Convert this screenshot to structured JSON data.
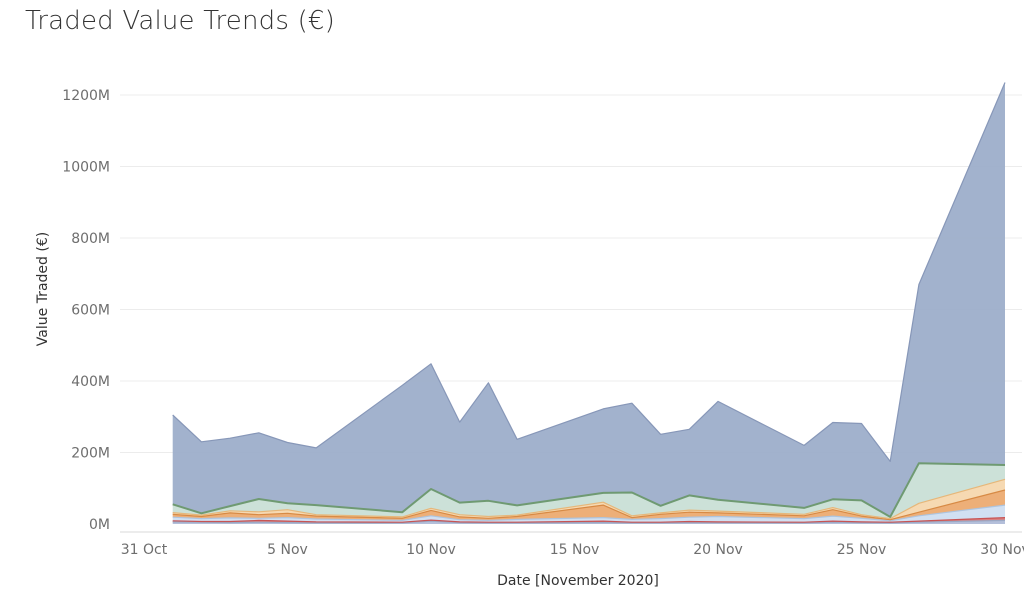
{
  "chart_data": {
    "type": "area",
    "title": "Traded Value Trends (€)",
    "xlabel": "Date [November 2020]",
    "ylabel": "Value Traded (€)",
    "ylim": [
      0,
      1270
    ],
    "y_unit": "M",
    "y_ticks": [
      {
        "value": 0,
        "label": "0M"
      },
      {
        "value": 200,
        "label": "200M"
      },
      {
        "value": 400,
        "label": "400M"
      },
      {
        "value": 600,
        "label": "600M"
      },
      {
        "value": 800,
        "label": "800M"
      },
      {
        "value": 1000,
        "label": "1000M"
      },
      {
        "value": 1200,
        "label": "1200M"
      }
    ],
    "x_ticks": [
      {
        "date": "2020-10-31",
        "label": "31 Oct"
      },
      {
        "date": "2020-11-05",
        "label": "5 Nov"
      },
      {
        "date": "2020-11-10",
        "label": "10 Nov"
      },
      {
        "date": "2020-11-15",
        "label": "15 Nov"
      },
      {
        "date": "2020-11-20",
        "label": "20 Nov"
      },
      {
        "date": "2020-11-25",
        "label": "25 Nov"
      },
      {
        "date": "2020-11-30",
        "label": "30 Nov"
      }
    ],
    "grid": true,
    "stacked": true,
    "series": [
      {
        "color": "#a7b4d4",
        "points": [
          [
            "2020-11-01",
            6
          ],
          [
            "2020-11-02",
            5
          ],
          [
            "2020-11-03",
            4
          ],
          [
            "2020-11-04",
            5
          ],
          [
            "2020-11-05",
            4
          ],
          [
            "2020-11-06",
            3
          ],
          [
            "2020-11-09",
            3
          ],
          [
            "2020-11-10",
            8
          ],
          [
            "2020-11-11",
            4
          ],
          [
            "2020-11-12",
            3
          ],
          [
            "2020-11-13",
            3
          ],
          [
            "2020-11-16",
            4
          ],
          [
            "2020-11-17",
            3
          ],
          [
            "2020-11-18",
            3
          ],
          [
            "2020-11-19",
            4
          ],
          [
            "2020-11-20",
            4
          ],
          [
            "2020-11-23",
            3
          ],
          [
            "2020-11-24",
            5
          ],
          [
            "2020-11-25",
            4
          ],
          [
            "2020-11-26",
            3
          ],
          [
            "2020-11-27",
            5
          ],
          [
            "2020-11-30",
            10
          ]
        ]
      },
      {
        "color": "#d36a6a",
        "points": [
          [
            "2020-11-01",
            3
          ],
          [
            "2020-11-02",
            2
          ],
          [
            "2020-11-03",
            3
          ],
          [
            "2020-11-04",
            5
          ],
          [
            "2020-11-05",
            4
          ],
          [
            "2020-11-06",
            3
          ],
          [
            "2020-11-09",
            2
          ],
          [
            "2020-11-10",
            3
          ],
          [
            "2020-11-11",
            2
          ],
          [
            "2020-11-12",
            2
          ],
          [
            "2020-11-13",
            2
          ],
          [
            "2020-11-16",
            4
          ],
          [
            "2020-11-17",
            2
          ],
          [
            "2020-11-18",
            2
          ],
          [
            "2020-11-19",
            3
          ],
          [
            "2020-11-20",
            2
          ],
          [
            "2020-11-23",
            2
          ],
          [
            "2020-11-24",
            3
          ],
          [
            "2020-11-25",
            2
          ],
          [
            "2020-11-26",
            2
          ],
          [
            "2020-11-27",
            3
          ],
          [
            "2020-11-30",
            8
          ]
        ]
      },
      {
        "color": "#c9daf0",
        "points": [
          [
            "2020-11-01",
            10
          ],
          [
            "2020-11-02",
            8
          ],
          [
            "2020-11-03",
            10
          ],
          [
            "2020-11-04",
            6
          ],
          [
            "2020-11-05",
            10
          ],
          [
            "2020-11-06",
            8
          ],
          [
            "2020-11-09",
            5
          ],
          [
            "2020-11-10",
            12
          ],
          [
            "2020-11-11",
            6
          ],
          [
            "2020-11-12",
            5
          ],
          [
            "2020-11-13",
            8
          ],
          [
            "2020-11-16",
            10
          ],
          [
            "2020-11-17",
            8
          ],
          [
            "2020-11-18",
            10
          ],
          [
            "2020-11-19",
            12
          ],
          [
            "2020-11-20",
            15
          ],
          [
            "2020-11-23",
            10
          ],
          [
            "2020-11-24",
            14
          ],
          [
            "2020-11-25",
            10
          ],
          [
            "2020-11-26",
            4
          ],
          [
            "2020-11-27",
            15
          ],
          [
            "2020-11-30",
            35
          ]
        ]
      },
      {
        "color": "#eaa160",
        "points": [
          [
            "2020-11-01",
            8
          ],
          [
            "2020-11-02",
            6
          ],
          [
            "2020-11-03",
            14
          ],
          [
            "2020-11-04",
            10
          ],
          [
            "2020-11-05",
            12
          ],
          [
            "2020-11-06",
            8
          ],
          [
            "2020-11-09",
            6
          ],
          [
            "2020-11-10",
            15
          ],
          [
            "2020-11-11",
            8
          ],
          [
            "2020-11-12",
            6
          ],
          [
            "2020-11-13",
            8
          ],
          [
            "2020-11-16",
            35
          ],
          [
            "2020-11-17",
            5
          ],
          [
            "2020-11-18",
            12
          ],
          [
            "2020-11-19",
            14
          ],
          [
            "2020-11-20",
            10
          ],
          [
            "2020-11-23",
            8
          ],
          [
            "2020-11-24",
            18
          ],
          [
            "2020-11-25",
            6
          ],
          [
            "2020-11-26",
            3
          ],
          [
            "2020-11-27",
            10
          ],
          [
            "2020-11-30",
            42
          ]
        ]
      },
      {
        "color": "#f5d2a4",
        "points": [
          [
            "2020-11-01",
            5
          ],
          [
            "2020-11-02",
            4
          ],
          [
            "2020-11-03",
            6
          ],
          [
            "2020-11-04",
            8
          ],
          [
            "2020-11-05",
            10
          ],
          [
            "2020-11-06",
            4
          ],
          [
            "2020-11-09",
            4
          ],
          [
            "2020-11-10",
            6
          ],
          [
            "2020-11-11",
            6
          ],
          [
            "2020-11-12",
            5
          ],
          [
            "2020-11-13",
            4
          ],
          [
            "2020-11-16",
            8
          ],
          [
            "2020-11-17",
            5
          ],
          [
            "2020-11-18",
            4
          ],
          [
            "2020-11-19",
            6
          ],
          [
            "2020-11-20",
            5
          ],
          [
            "2020-11-23",
            4
          ],
          [
            "2020-11-24",
            6
          ],
          [
            "2020-11-25",
            4
          ],
          [
            "2020-11-26",
            3
          ],
          [
            "2020-11-27",
            25
          ],
          [
            "2020-11-30",
            30
          ]
        ]
      },
      {
        "color": "#c3dcd1",
        "points": [
          [
            "2020-11-01",
            23
          ],
          [
            "2020-11-02",
            5
          ],
          [
            "2020-11-03",
            13
          ],
          [
            "2020-11-04",
            36
          ],
          [
            "2020-11-05",
            18
          ],
          [
            "2020-11-06",
            27
          ],
          [
            "2020-11-09",
            13
          ],
          [
            "2020-11-10",
            54
          ],
          [
            "2020-11-11",
            34
          ],
          [
            "2020-11-12",
            44
          ],
          [
            "2020-11-13",
            27
          ],
          [
            "2020-11-16",
            26
          ],
          [
            "2020-11-17",
            65
          ],
          [
            "2020-11-18",
            20
          ],
          [
            "2020-11-19",
            41
          ],
          [
            "2020-11-20",
            32
          ],
          [
            "2020-11-23",
            18
          ],
          [
            "2020-11-24",
            23
          ],
          [
            "2020-11-25",
            40
          ],
          [
            "2020-11-26",
            5
          ],
          [
            "2020-11-27",
            112
          ],
          [
            "2020-11-30",
            40
          ]
        ]
      },
      {
        "color": "#9aabc9",
        "points": [
          [
            "2020-11-01",
            250
          ],
          [
            "2020-11-02",
            200
          ],
          [
            "2020-11-03",
            190
          ],
          [
            "2020-11-04",
            185
          ],
          [
            "2020-11-05",
            170
          ],
          [
            "2020-11-06",
            160
          ],
          [
            "2020-11-09",
            355
          ],
          [
            "2020-11-10",
            350
          ],
          [
            "2020-11-11",
            225
          ],
          [
            "2020-11-12",
            330
          ],
          [
            "2020-11-13",
            185
          ],
          [
            "2020-11-16",
            235
          ],
          [
            "2020-11-17",
            250
          ],
          [
            "2020-11-18",
            200
          ],
          [
            "2020-11-19",
            185
          ],
          [
            "2020-11-20",
            275
          ],
          [
            "2020-11-23",
            175
          ],
          [
            "2020-11-24",
            215
          ],
          [
            "2020-11-25",
            215
          ],
          [
            "2020-11-26",
            155
          ],
          [
            "2020-11-27",
            500
          ],
          [
            "2020-11-30",
            1070
          ]
        ]
      }
    ]
  }
}
